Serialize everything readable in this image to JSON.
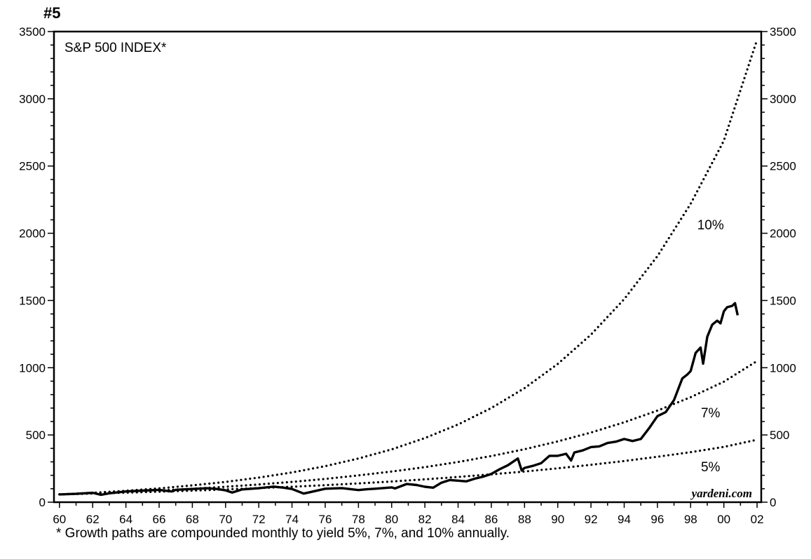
{
  "chart_number": "#5",
  "footnote": "* Growth paths are compounded monthly to yield 5%, 7%, and 10% annually.",
  "watermark": "yardeni.com",
  "chart_data": {
    "type": "line",
    "title": "S&P 500 INDEX*",
    "xlabel": "",
    "ylabel": "",
    "xlim": [
      1959.67,
      2002.25
    ],
    "ylim": [
      0,
      3500
    ],
    "y_ticks": [
      0,
      500,
      1000,
      1500,
      2000,
      2500,
      3000,
      3500
    ],
    "y_tick_labels": [
      "0",
      "500",
      "1000",
      "1500",
      "2000",
      "2500",
      "3000",
      "3500"
    ],
    "x_ticks": [
      1960,
      1962,
      1964,
      1966,
      1968,
      1970,
      1972,
      1974,
      1976,
      1978,
      1980,
      1982,
      1984,
      1986,
      1988,
      1990,
      1992,
      1994,
      1996,
      1998,
      2000,
      2002
    ],
    "x_tick_labels": [
      "60",
      "62",
      "64",
      "66",
      "68",
      "70",
      "72",
      "74",
      "76",
      "78",
      "80",
      "82",
      "84",
      "86",
      "88",
      "90",
      "92",
      "94",
      "96",
      "98",
      "00",
      "02"
    ],
    "grid": false,
    "right_axis_mirrored": true,
    "series": [
      {
        "name": "",
        "style": "solid",
        "color": "#000000",
        "x": [
          1960.0,
          1961.0,
          1962.0,
          1962.5,
          1963.0,
          1964.0,
          1965.0,
          1966.0,
          1966.75,
          1967.0,
          1968.0,
          1968.9,
          1969.5,
          1970.0,
          1970.4,
          1971.0,
          1972.0,
          1972.9,
          1973.5,
          1974.0,
          1974.7,
          1975.0,
          1976.0,
          1977.0,
          1978.0,
          1978.5,
          1979.0,
          1980.0,
          1980.2,
          1980.9,
          1981.5,
          1982.0,
          1982.5,
          1983.0,
          1983.5,
          1984.0,
          1984.5,
          1985.0,
          1985.5,
          1986.0,
          1986.5,
          1987.0,
          1987.6,
          1987.83,
          1988.0,
          1988.5,
          1989.0,
          1989.5,
          1990.0,
          1990.5,
          1990.8,
          1991.0,
          1991.5,
          1992.0,
          1992.5,
          1993.0,
          1993.5,
          1994.0,
          1994.5,
          1995.0,
          1995.5,
          1996.0,
          1996.5,
          1997.0,
          1997.5,
          1997.8,
          1998.0,
          1998.3,
          1998.6,
          1998.75,
          1999.0,
          1999.3,
          1999.6,
          1999.8,
          2000.0,
          2000.2,
          2000.5,
          2000.67,
          2000.83
        ],
        "values": [
          58,
          62,
          70,
          55,
          66,
          80,
          86,
          92,
          80,
          92,
          98,
          104,
          98,
          88,
          72,
          95,
          104,
          116,
          108,
          98,
          64,
          72,
          100,
          105,
          90,
          96,
          100,
          110,
          102,
          135,
          128,
          115,
          108,
          145,
          165,
          160,
          155,
          175,
          190,
          210,
          245,
          275,
          325,
          235,
          255,
          270,
          290,
          345,
          345,
          360,
          310,
          370,
          385,
          410,
          415,
          440,
          450,
          470,
          455,
          470,
          550,
          640,
          670,
          760,
          920,
          950,
          975,
          1110,
          1150,
          1030,
          1230,
          1320,
          1350,
          1330,
          1420,
          1450,
          1460,
          1480,
          1390
        ]
      },
      {
        "name": "10%",
        "style": "dotted",
        "color": "#000000",
        "x": [
          1960.0,
          1962.0,
          1964.0,
          1966.0,
          1968.0,
          1970.0,
          1972.0,
          1974.0,
          1976.0,
          1978.0,
          1980.0,
          1982.0,
          1984.0,
          1986.0,
          1988.0,
          1990.0,
          1992.0,
          1994.0,
          1996.0,
          1998.0,
          2000.0,
          2002.0
        ],
        "values": [
          58,
          70,
          85,
          103,
          125,
          151,
          183,
          221,
          268,
          325,
          393,
          477,
          578,
          700,
          848,
          1028,
          1246,
          1510,
          1830,
          2219,
          2689,
          3440
        ]
      },
      {
        "name": "7%",
        "style": "dotted",
        "color": "#000000",
        "x": [
          1960.0,
          1962.0,
          1964.0,
          1966.0,
          1968.0,
          1970.0,
          1972.0,
          1974.0,
          1976.0,
          1978.0,
          1980.0,
          1982.0,
          1984.0,
          1986.0,
          1988.0,
          1990.0,
          1992.0,
          1994.0,
          1996.0,
          1998.0,
          2000.0,
          2002.0
        ],
        "values": [
          58,
          66,
          76,
          87,
          100,
          115,
          132,
          151,
          173,
          199,
          228,
          261,
          299,
          343,
          394,
          452,
          518,
          594,
          681,
          781,
          896,
          1050
        ]
      },
      {
        "name": "5%",
        "style": "dotted",
        "color": "#000000",
        "x": [
          1960.0,
          1962.0,
          1964.0,
          1966.0,
          1968.0,
          1970.0,
          1972.0,
          1974.0,
          1976.0,
          1978.0,
          1980.0,
          1982.0,
          1984.0,
          1986.0,
          1988.0,
          1990.0,
          1992.0,
          1994.0,
          1996.0,
          1998.0,
          2000.0,
          2002.0
        ],
        "values": [
          58,
          64,
          71,
          78,
          86,
          95,
          105,
          115,
          127,
          140,
          154,
          170,
          188,
          207,
          228,
          252,
          278,
          306,
          338,
          372,
          411,
          465
        ]
      }
    ],
    "annotations": [
      {
        "text": "10%",
        "x": 1999.2,
        "y": 2030
      },
      {
        "text": "7%",
        "x": 1999.2,
        "y": 630
      },
      {
        "text": "5%",
        "x": 1999.2,
        "y": 230
      }
    ]
  }
}
